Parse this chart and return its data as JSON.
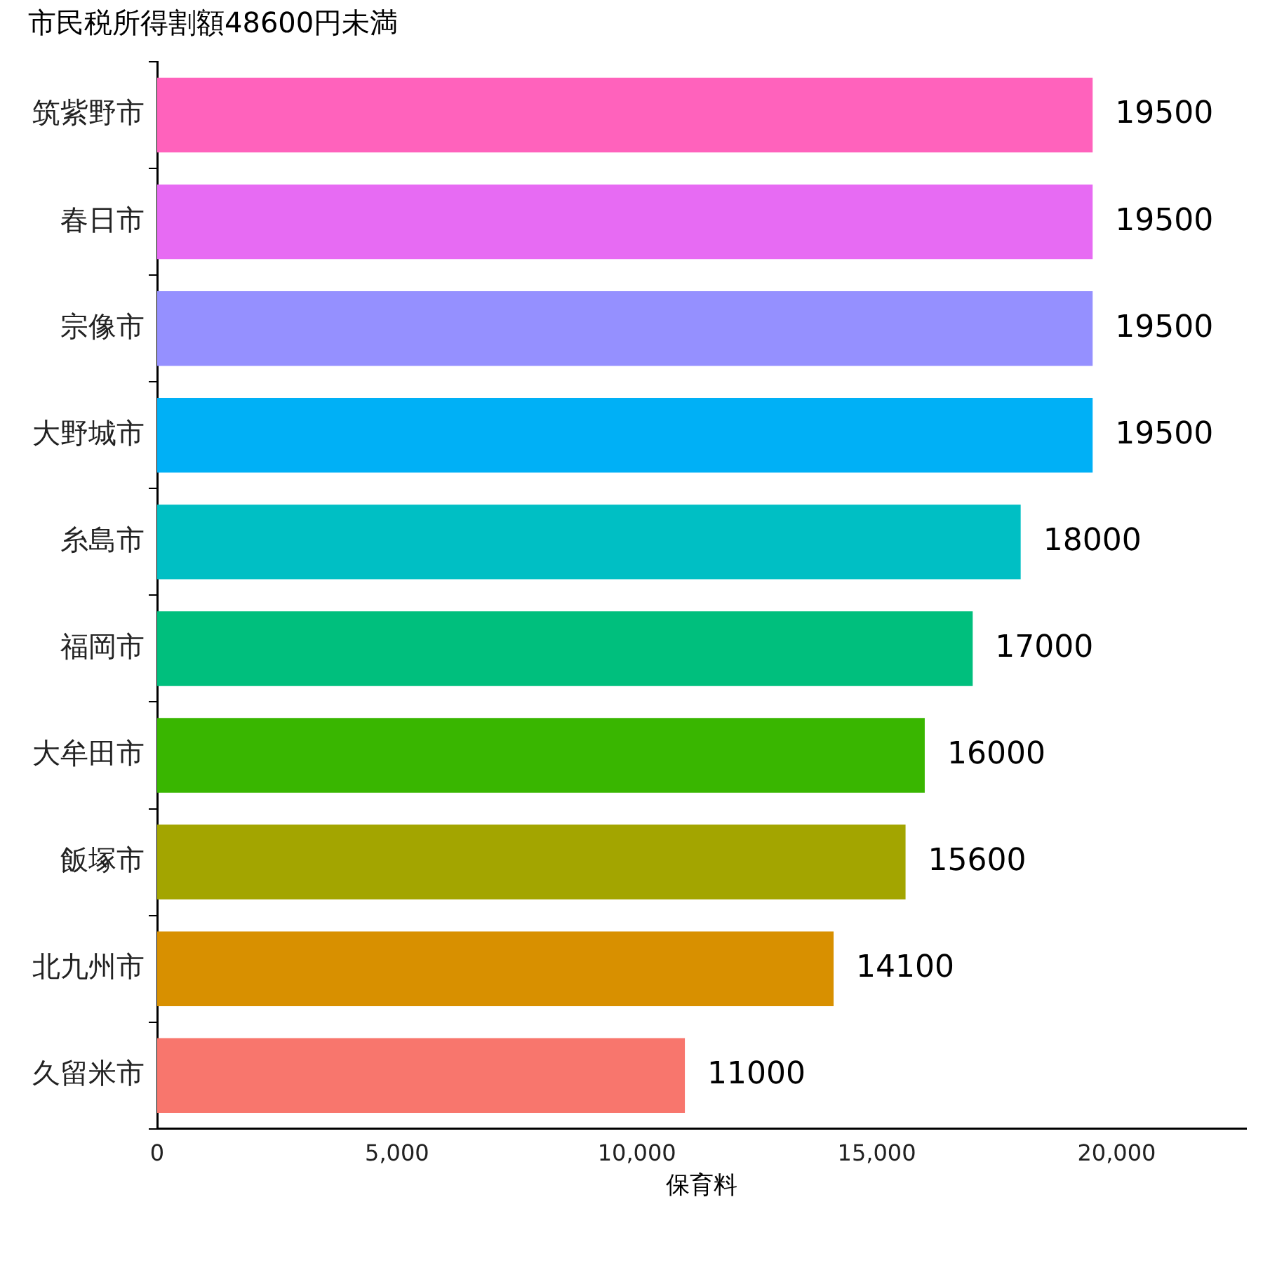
{
  "chart_data": {
    "type": "bar",
    "orientation": "horizontal",
    "title": "市民税所得割額48600円未満",
    "xlabel": "保育料",
    "categories": [
      "筑紫野市",
      "春日市",
      "宗像市",
      "大野城市",
      "糸島市",
      "福岡市",
      "大牟田市",
      "飯塚市",
      "北九州市",
      "久留米市"
    ],
    "values": [
      19500,
      19500,
      19500,
      19500,
      18000,
      17000,
      16000,
      15600,
      14100,
      11000
    ],
    "colors": [
      "#ff62bc",
      "#e76bf3",
      "#9590ff",
      "#00b0f6",
      "#00bfc4",
      "#00bf7d",
      "#39b600",
      "#a3a500",
      "#d89000",
      "#f8766d"
    ],
    "xlim": [
      0,
      22700
    ],
    "xticks": [
      {
        "value": 0,
        "label": "0"
      },
      {
        "value": 5000,
        "label": "5,000"
      },
      {
        "value": 10000,
        "label": "10,000"
      },
      {
        "value": 15000,
        "label": "15,000"
      },
      {
        "value": 20000,
        "label": "20,000"
      }
    ],
    "grid": false,
    "data_labels": true,
    "legend": false
  }
}
